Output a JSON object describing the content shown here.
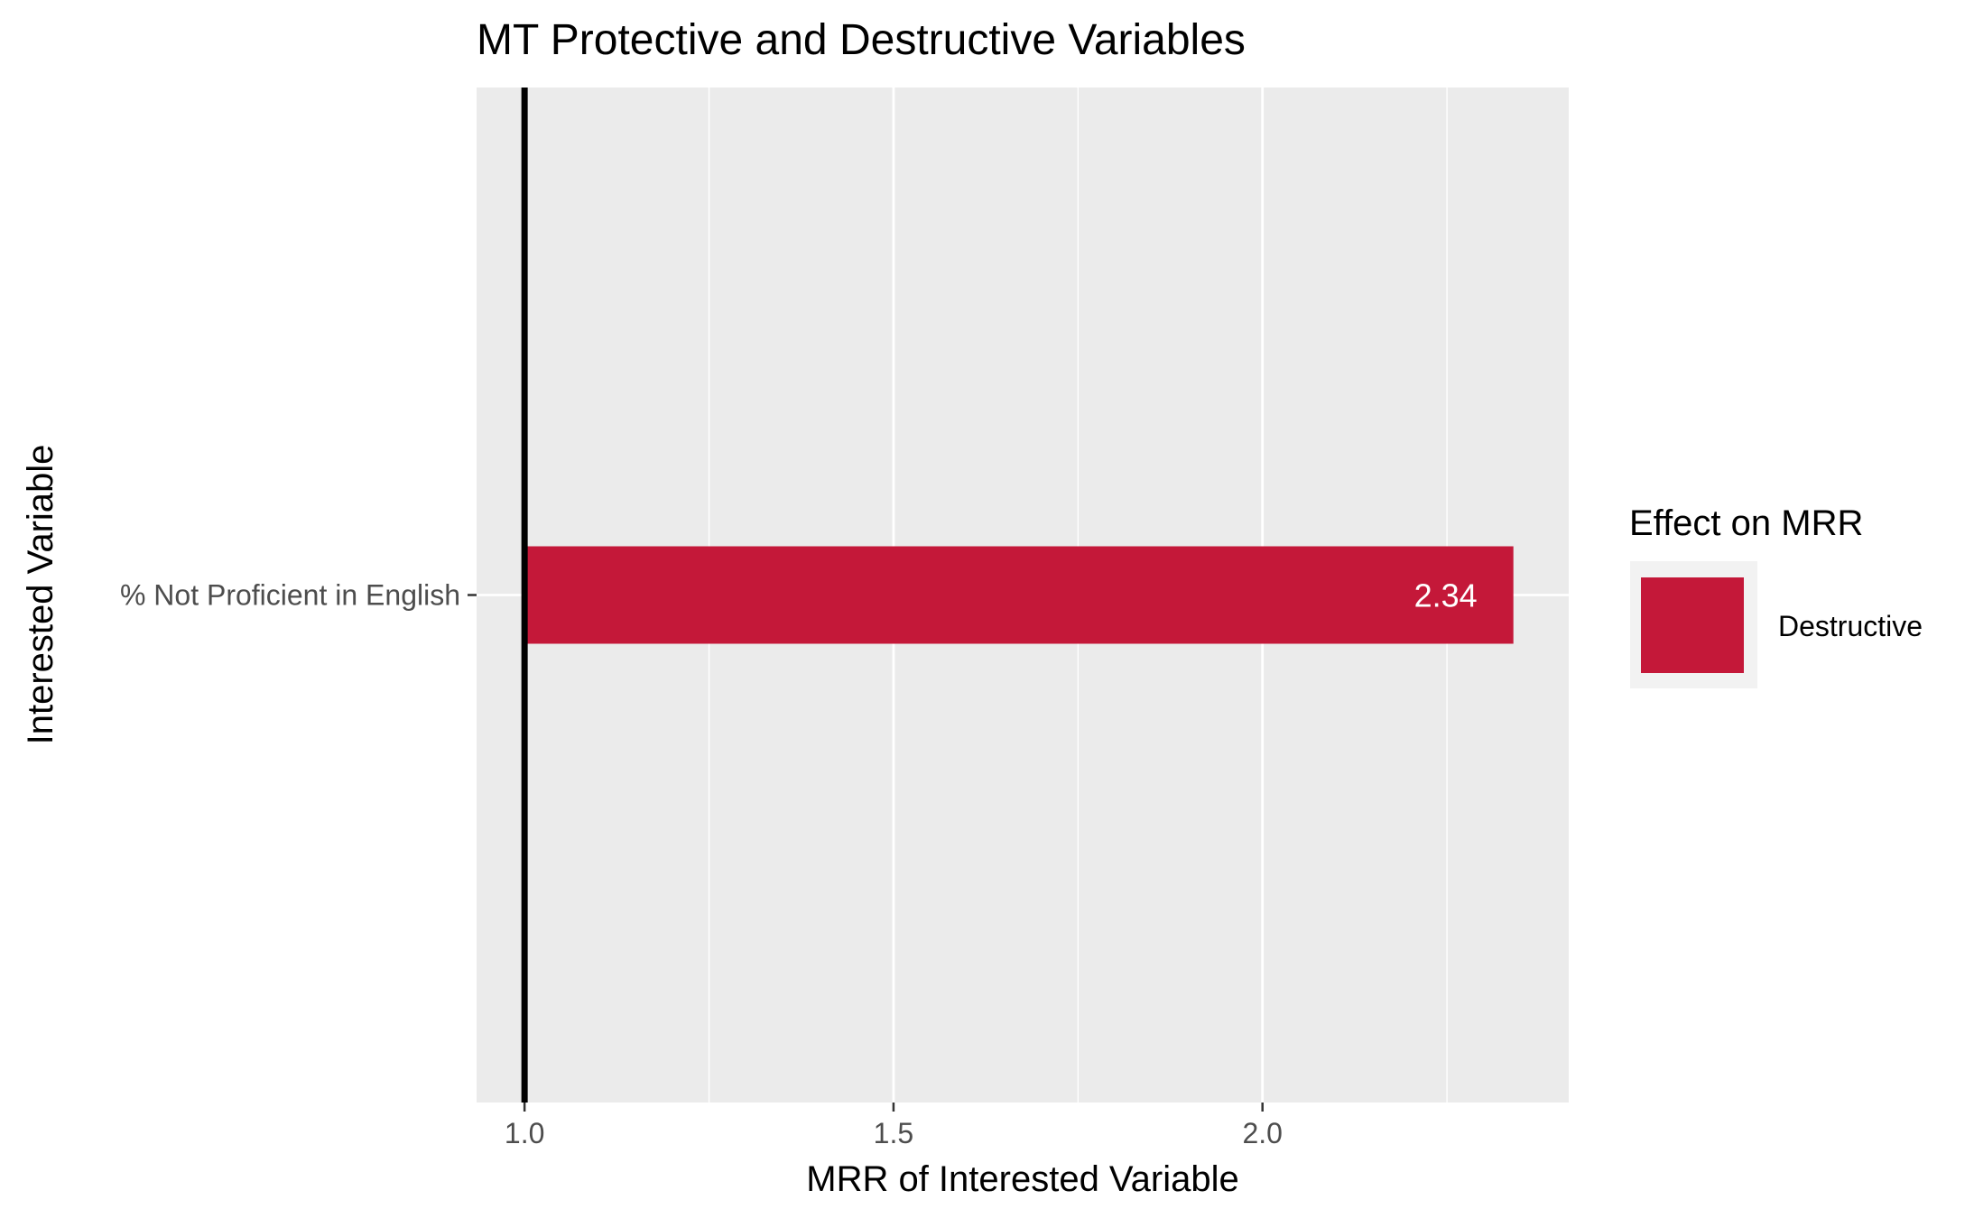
{
  "chart_data": {
    "type": "bar",
    "orientation": "horizontal",
    "title": "MT Protective and Destructive Variables",
    "xlabel": "MRR of Interested Variable",
    "ylabel": "Interested Variable",
    "categories": [
      "% Not Proficient in English"
    ],
    "series": [
      {
        "name": "Destructive",
        "values": [
          2.34
        ],
        "color": "#c41839"
      }
    ],
    "data_labels": [
      "2.34"
    ],
    "bar_base": 1.0,
    "reference_line": 1.0,
    "xlim": [
      0.935,
      2.415
    ],
    "x_ticks": [
      1.0,
      1.5,
      2.0
    ],
    "x_tick_labels": [
      "1.0",
      "1.5",
      "2.0"
    ],
    "x_minor_gridlines": [
      1.25,
      1.75,
      2.25
    ],
    "grid": true,
    "panel_background": "#ebebeb",
    "gridline_color": "#ffffff",
    "legend": {
      "title": "Effect on MRR",
      "position": "right",
      "entries": [
        {
          "label": "Destructive",
          "color": "#c41839"
        }
      ]
    }
  }
}
